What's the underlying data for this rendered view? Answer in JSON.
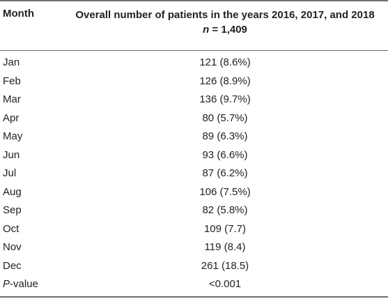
{
  "table": {
    "header": {
      "month_label": "Month",
      "column_title": "Overall number of patients in the years 2016, 2017, and 2018",
      "n_symbol": "n",
      "n_rest": " = 1,409"
    },
    "rows": [
      {
        "month": "Jan",
        "value": "121 (8.6%)"
      },
      {
        "month": "Feb",
        "value": "126 (8.9%)"
      },
      {
        "month": "Mar",
        "value": "136 (9.7%)"
      },
      {
        "month": "Apr",
        "value": "80 (5.7%)"
      },
      {
        "month": "May",
        "value": "89 (6.3%)"
      },
      {
        "month": "Jun",
        "value": "93 (6.6%)"
      },
      {
        "month": "Jul",
        "value": "87 (6.2%)"
      },
      {
        "month": "Aug",
        "value": "106 (7.5%)"
      },
      {
        "month": "Sep",
        "value": "82 (5.8%)"
      },
      {
        "month": "Oct",
        "value": "109 (7.7)"
      },
      {
        "month": "Nov",
        "value": "119 (8.4)"
      },
      {
        "month": "Dec",
        "value": "261 (18.5)"
      }
    ],
    "pvalue_row": {
      "p": "P",
      "suffix": "-value",
      "value": "<0.001"
    }
  }
}
